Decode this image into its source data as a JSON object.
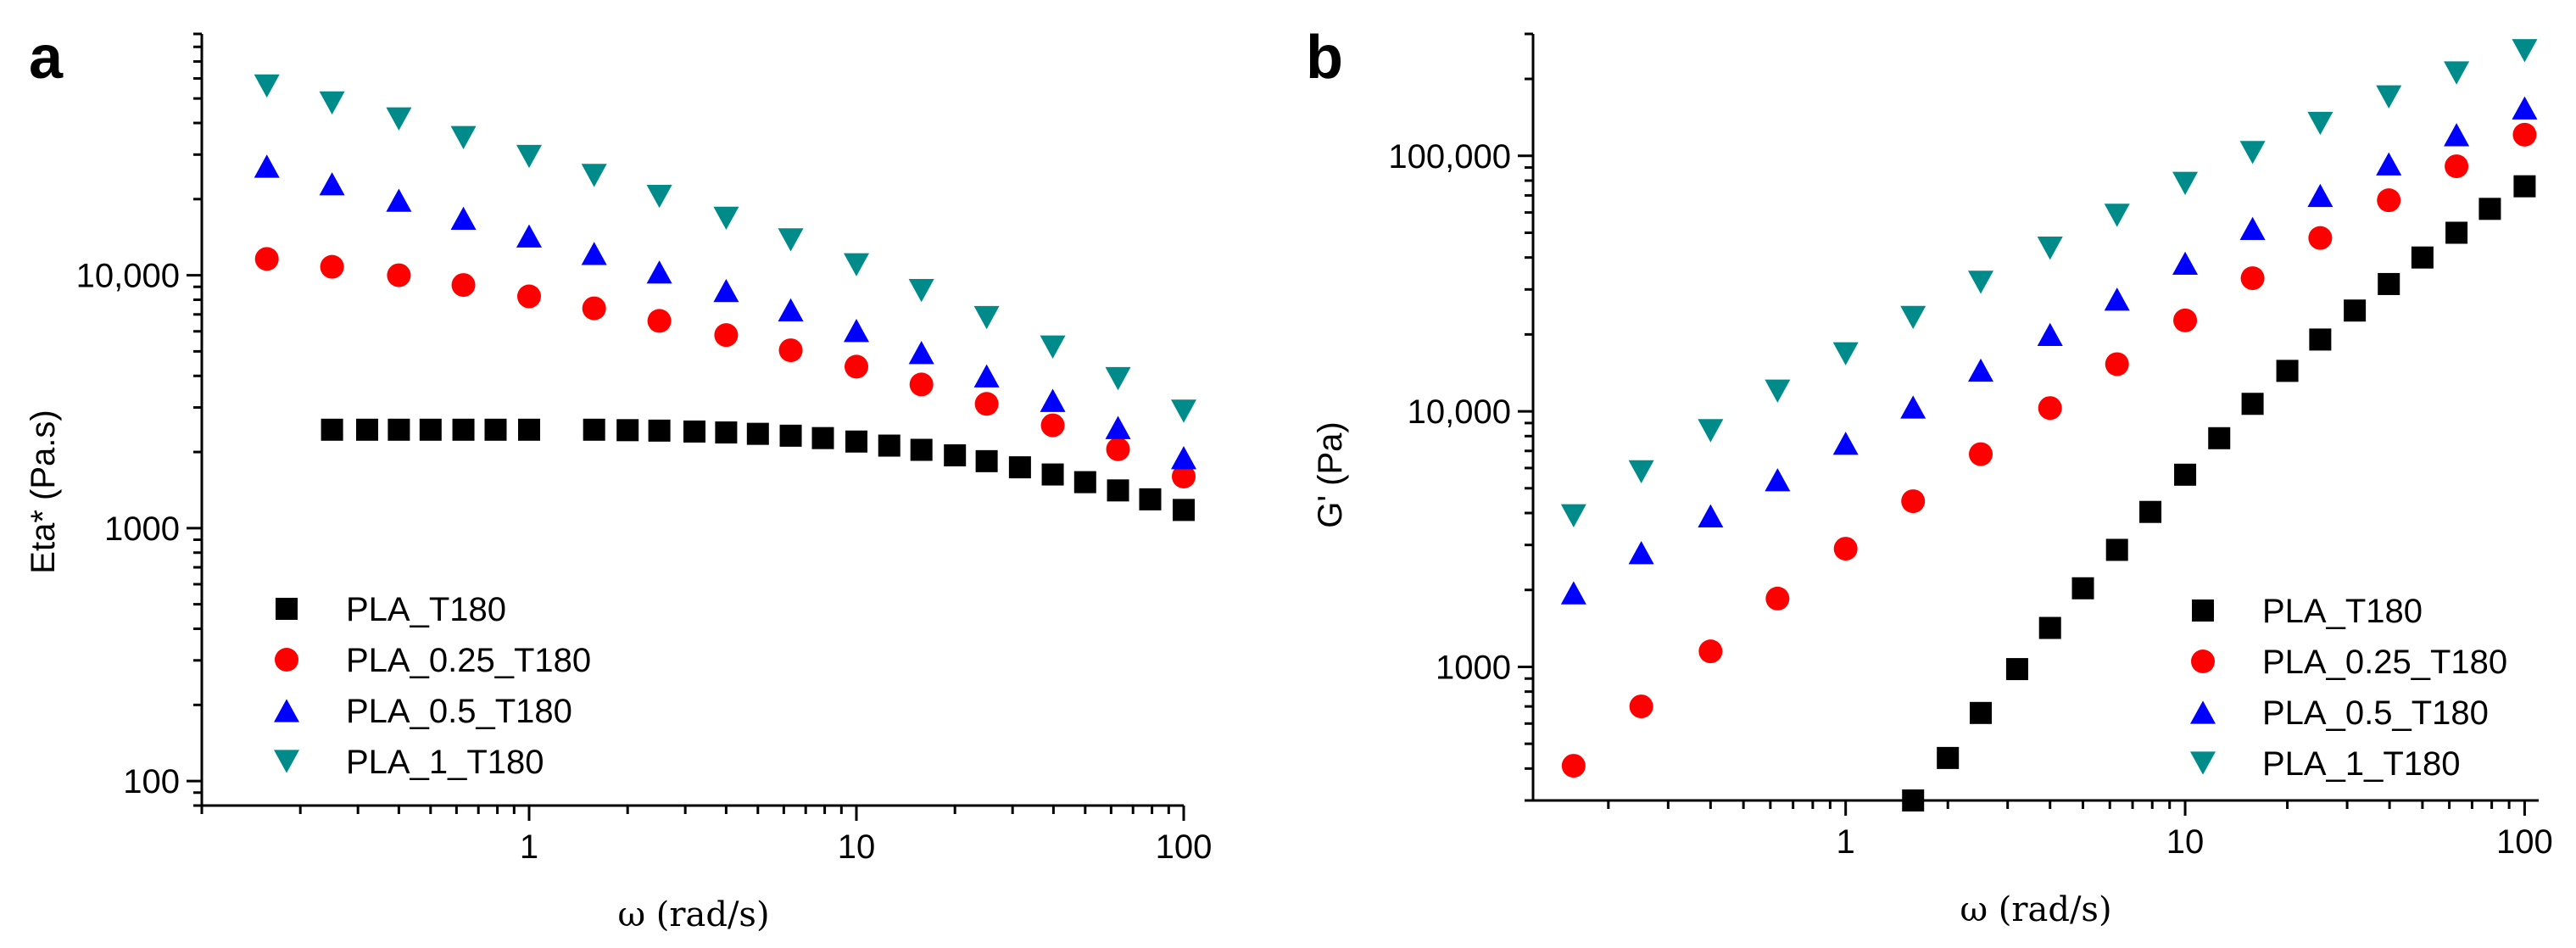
{
  "chart_data": [
    {
      "panel_label": "a",
      "type": "scatter",
      "xscale": "log",
      "yscale": "log",
      "xlabel": "ω (rad/s)",
      "ylabel": "Eta* (Pa.s)",
      "xlim": [
        0.1,
        100
      ],
      "ylim": [
        80,
        90000
      ],
      "xticks": [
        {
          "value": 1,
          "label": "1"
        },
        {
          "value": 10,
          "label": "10"
        },
        {
          "value": 100,
          "label": "100"
        }
      ],
      "yticks": [
        {
          "value": 100,
          "label": "100"
        },
        {
          "value": 1000,
          "label": "1000"
        },
        {
          "value": 10000,
          "label": "10,000"
        }
      ],
      "legend_position": "bottom-left",
      "series": [
        {
          "name": "PLA_T180",
          "marker": "square",
          "color": "#000000",
          "points": [
            [
              0.25,
              2450
            ],
            [
              0.32,
              2450
            ],
            [
              0.4,
              2450
            ],
            [
              0.5,
              2450
            ],
            [
              0.63,
              2450
            ],
            [
              0.79,
              2450
            ],
            [
              1.0,
              2450
            ],
            [
              1.58,
              2450
            ],
            [
              2.0,
              2440
            ],
            [
              2.5,
              2430
            ],
            [
              3.2,
              2410
            ],
            [
              4.0,
              2390
            ],
            [
              5.0,
              2360
            ],
            [
              6.3,
              2320
            ],
            [
              7.9,
              2270
            ],
            [
              10,
              2200
            ],
            [
              12.6,
              2120
            ],
            [
              15.8,
              2040
            ],
            [
              20,
              1940
            ],
            [
              25,
              1840
            ],
            [
              31.6,
              1740
            ],
            [
              39.8,
              1630
            ],
            [
              50,
              1520
            ],
            [
              63,
              1410
            ],
            [
              79,
              1300
            ],
            [
              100,
              1180
            ]
          ]
        },
        {
          "name": "PLA_0.25_T180",
          "marker": "circle",
          "color": "#ff0000",
          "points": [
            [
              0.158,
              11600
            ],
            [
              0.25,
              10800
            ],
            [
              0.4,
              10000
            ],
            [
              0.63,
              9150
            ],
            [
              1.0,
              8250
            ],
            [
              1.58,
              7400
            ],
            [
              2.5,
              6600
            ],
            [
              4.0,
              5800
            ],
            [
              6.3,
              5050
            ],
            [
              10,
              4350
            ],
            [
              15.8,
              3700
            ],
            [
              25,
              3100
            ],
            [
              39.8,
              2550
            ],
            [
              63,
              2050
            ],
            [
              100,
              1600
            ]
          ]
        },
        {
          "name": "PLA_0.5_T180",
          "marker": "triangle-up",
          "color": "#0000ff",
          "points": [
            [
              0.158,
              27000
            ],
            [
              0.25,
              23000
            ],
            [
              0.4,
              19800
            ],
            [
              0.63,
              16800
            ],
            [
              1.0,
              14300
            ],
            [
              1.58,
              12200
            ],
            [
              2.5,
              10300
            ],
            [
              4.0,
              8700
            ],
            [
              6.3,
              7300
            ],
            [
              10,
              6050
            ],
            [
              15.8,
              4950
            ],
            [
              25,
              4000
            ],
            [
              39.8,
              3200
            ],
            [
              63,
              2500
            ],
            [
              100,
              1900
            ]
          ]
        },
        {
          "name": "PLA_1_T180",
          "marker": "triangle-down",
          "color": "#008b8b",
          "points": [
            [
              0.158,
              56000
            ],
            [
              0.25,
              48000
            ],
            [
              0.4,
              41500
            ],
            [
              0.63,
              35000
            ],
            [
              1.0,
              29500
            ],
            [
              1.58,
              24800
            ],
            [
              2.5,
              20500
            ],
            [
              4.0,
              16800
            ],
            [
              6.3,
              13800
            ],
            [
              10,
              11000
            ],
            [
              15.8,
              8700
            ],
            [
              25,
              6800
            ],
            [
              39.8,
              5200
            ],
            [
              63,
              3900
            ],
            [
              100,
              2900
            ]
          ]
        }
      ]
    },
    {
      "panel_label": "b",
      "type": "scatter",
      "xscale": "log",
      "yscale": "log",
      "xlabel": "ω (rad/s)",
      "ylabel": "G' (Pa)",
      "xlim": [
        0.12,
        110
      ],
      "ylim": [
        300,
        300000
      ],
      "xticks": [
        {
          "value": 1,
          "label": "1"
        },
        {
          "value": 10,
          "label": "10"
        },
        {
          "value": 100,
          "label": "100"
        }
      ],
      "yticks": [
        {
          "value": 1000,
          "label": "1000"
        },
        {
          "value": 10000,
          "label": "10,000"
        },
        {
          "value": 100000,
          "label": "100,000"
        }
      ],
      "legend_position": "bottom-right",
      "series": [
        {
          "name": "PLA_T180",
          "marker": "square",
          "color": "#000000",
          "points": [
            [
              1.58,
              300
            ],
            [
              2.0,
              440
            ],
            [
              2.5,
              660
            ],
            [
              3.2,
              980
            ],
            [
              4.0,
              1420
            ],
            [
              5.0,
              2030
            ],
            [
              6.3,
              2870
            ],
            [
              7.9,
              4040
            ],
            [
              10,
              5650
            ],
            [
              12.6,
              7850
            ],
            [
              15.8,
              10700
            ],
            [
              20,
              14400
            ],
            [
              25,
              19100
            ],
            [
              31.6,
              24800
            ],
            [
              39.8,
              31500
            ],
            [
              50,
              40000
            ],
            [
              63,
              50000
            ],
            [
              79,
              62000
            ],
            [
              100,
              76000
            ]
          ]
        },
        {
          "name": "PLA_0.25_T180",
          "marker": "circle",
          "color": "#ff0000",
          "points": [
            [
              0.158,
              410
            ],
            [
              0.25,
              700
            ],
            [
              0.4,
              1150
            ],
            [
              0.63,
              1850
            ],
            [
              1.0,
              2900
            ],
            [
              1.58,
              4450
            ],
            [
              2.5,
              6800
            ],
            [
              4.0,
              10300
            ],
            [
              6.3,
              15300
            ],
            [
              10,
              22700
            ],
            [
              15.8,
              33200
            ],
            [
              25,
              47700
            ],
            [
              39.8,
              67000
            ],
            [
              63,
              91000
            ],
            [
              100,
              121000
            ]
          ]
        },
        {
          "name": "PLA_0.5_T180",
          "marker": "triangle-up",
          "color": "#0000ff",
          "points": [
            [
              0.158,
              1950
            ],
            [
              0.25,
              2800
            ],
            [
              0.4,
              3900
            ],
            [
              0.63,
              5400
            ],
            [
              1.0,
              7500
            ],
            [
              1.58,
              10400
            ],
            [
              2.5,
              14500
            ],
            [
              4.0,
              20000
            ],
            [
              6.3,
              27500
            ],
            [
              10,
              38000
            ],
            [
              15.8,
              52000
            ],
            [
              25,
              70000
            ],
            [
              39.8,
              93000
            ],
            [
              63,
              121000
            ],
            [
              100,
              154000
            ]
          ]
        },
        {
          "name": "PLA_1_T180",
          "marker": "triangle-down",
          "color": "#008b8b",
          "points": [
            [
              0.158,
              3900
            ],
            [
              0.25,
              5800
            ],
            [
              0.4,
              8400
            ],
            [
              0.63,
              12000
            ],
            [
              1.0,
              16800
            ],
            [
              1.58,
              23300
            ],
            [
              2.5,
              32000
            ],
            [
              4.0,
              43500
            ],
            [
              6.3,
              58500
            ],
            [
              10,
              78000
            ],
            [
              15.8,
              103000
            ],
            [
              25,
              134000
            ],
            [
              39.8,
              170000
            ],
            [
              63,
              211000
            ],
            [
              100,
              258000
            ]
          ]
        }
      ]
    }
  ]
}
